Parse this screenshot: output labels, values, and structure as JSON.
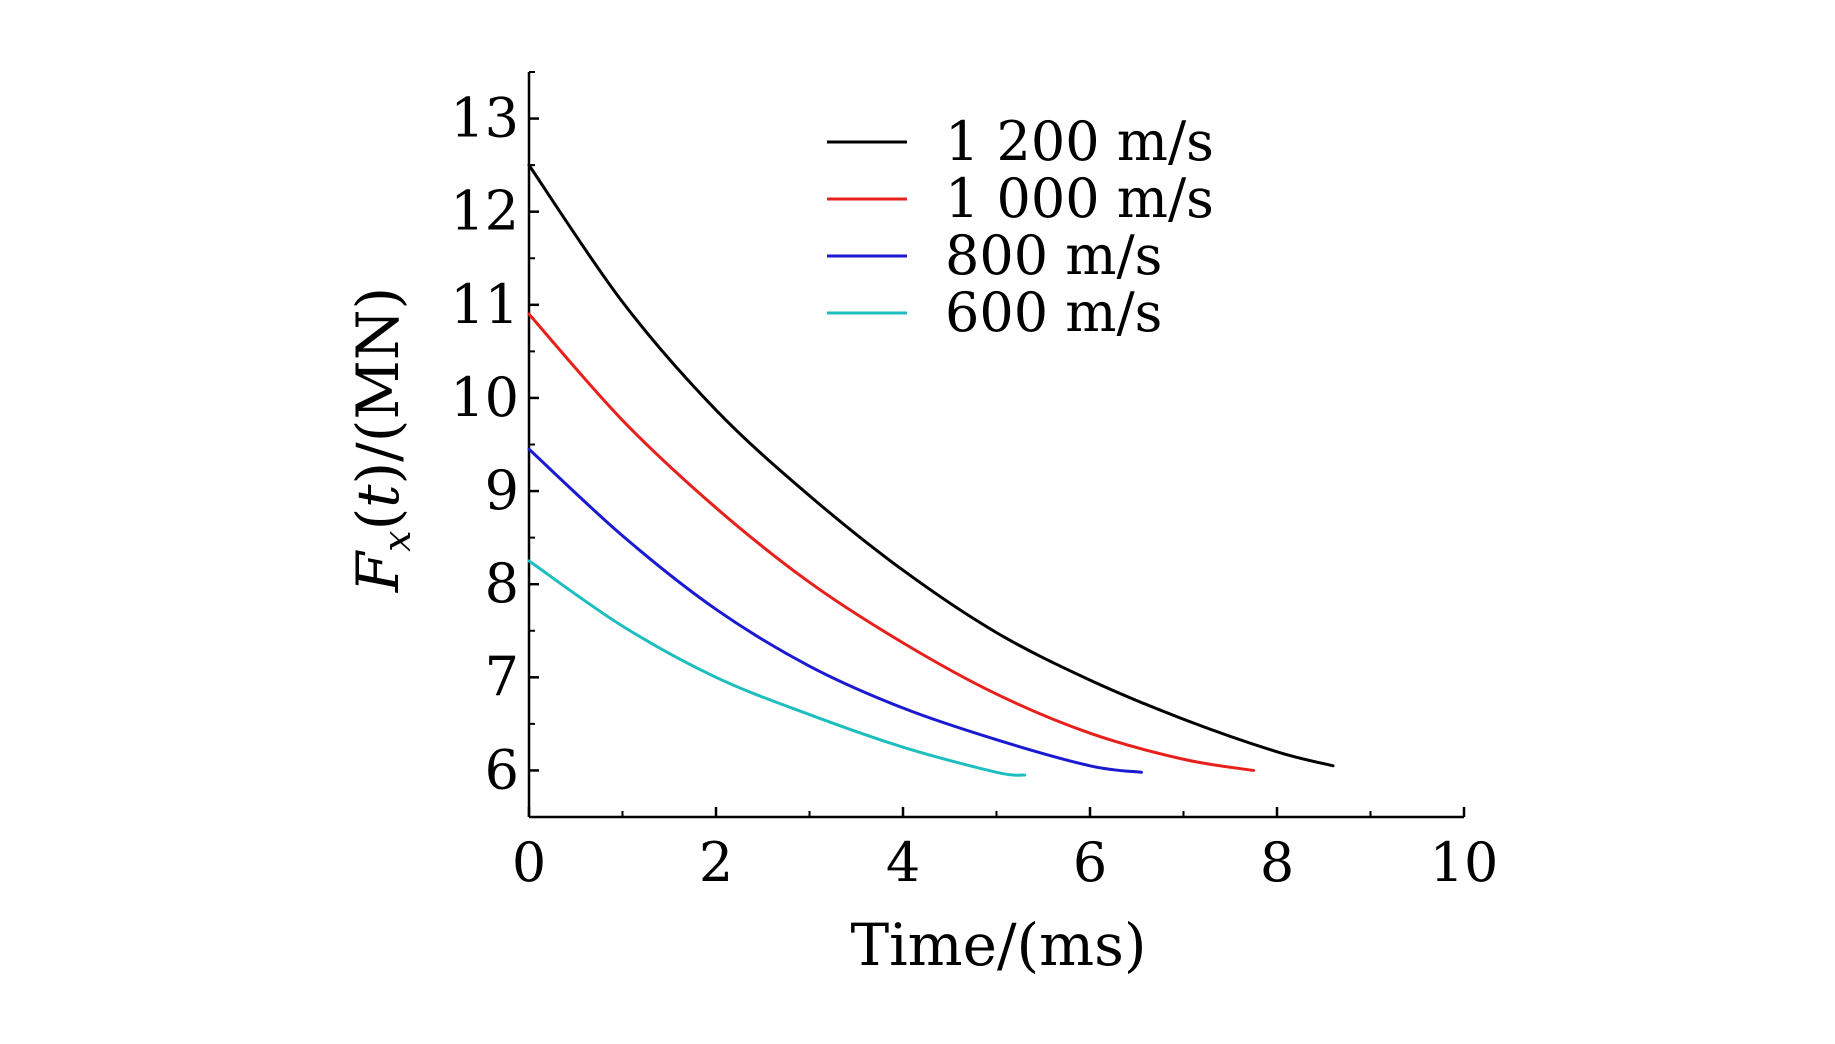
{
  "chart_data": {
    "type": "line",
    "title": "",
    "xlabel": "Time/(ms)",
    "ylabel": {
      "parts": [
        {
          "text": "F",
          "italic": true,
          "sub": false
        },
        {
          "text": "x",
          "italic": true,
          "sub": true
        },
        {
          "text": "(",
          "italic": false,
          "sub": false
        },
        {
          "text": "t",
          "italic": true,
          "sub": false
        },
        {
          "text": ")/(MN)",
          "italic": false,
          "sub": false
        }
      ]
    },
    "xlim": [
      0,
      10
    ],
    "ylim": [
      5.5,
      13.5
    ],
    "xticks": [
      0,
      2,
      4,
      6,
      8,
      10
    ],
    "xtick_labels": [
      "0",
      "2",
      "4",
      "6",
      "8",
      "10"
    ],
    "yticks": [
      6,
      7,
      8,
      9,
      10,
      11,
      12,
      13
    ],
    "ytick_labels": [
      "6",
      "7",
      "8",
      "9",
      "10",
      "11",
      "12",
      "13"
    ],
    "grid": false,
    "legend_position": "top-right",
    "series": [
      {
        "name": "1 200 m/s",
        "color": "#000000",
        "x": [
          0,
          1,
          2,
          3,
          4,
          5,
          6,
          7,
          8,
          8.6
        ],
        "y": [
          12.5,
          11.03,
          9.87,
          8.95,
          8.15,
          7.48,
          6.97,
          6.55,
          6.2,
          6.05
        ]
      },
      {
        "name": "1 000 m/s",
        "color": "#e8201c",
        "x": [
          0,
          1,
          2,
          3,
          4,
          5,
          6,
          7,
          7.75
        ],
        "y": [
          10.9,
          9.76,
          8.82,
          8.02,
          7.37,
          6.82,
          6.4,
          6.12,
          6.0
        ]
      },
      {
        "name": "800 m/s",
        "color": "#1a1ad0",
        "x": [
          0,
          1,
          2,
          3,
          4,
          5,
          6,
          6.55
        ],
        "y": [
          9.45,
          8.52,
          7.73,
          7.12,
          6.67,
          6.33,
          6.05,
          5.98
        ]
      },
      {
        "name": "600 m/s",
        "color": "#1ebebe",
        "x": [
          0,
          1,
          2,
          3,
          4,
          5,
          5.3
        ],
        "y": [
          8.25,
          7.55,
          7.0,
          6.6,
          6.25,
          5.98,
          5.95
        ]
      }
    ]
  }
}
